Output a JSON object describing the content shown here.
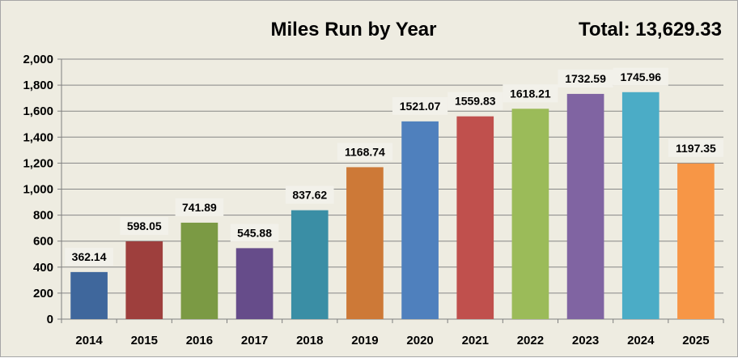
{
  "chart_data": {
    "type": "bar",
    "title": "Miles Run by Year",
    "total_label": "Total: 13,629.33",
    "categories": [
      "2014",
      "2015",
      "2016",
      "2017",
      "2018",
      "2019",
      "2020",
      "2021",
      "2022",
      "2023",
      "2024",
      "2025"
    ],
    "values": [
      362.14,
      598.05,
      741.89,
      545.88,
      837.62,
      1168.74,
      1521.07,
      1559.83,
      1618.21,
      1732.59,
      1745.96,
      1197.35
    ],
    "data_labels": [
      "362.14",
      "598.05",
      "741.89",
      "545.88",
      "837.62",
      "1168.74",
      "1521.07",
      "1559.83",
      "1618.21",
      "1732.59",
      "1745.96",
      "1197.35"
    ],
    "bar_colors": [
      "#3f679c",
      "#9e3f3d",
      "#7b9a44",
      "#664c8a",
      "#3a8ea5",
      "#cd7937",
      "#4f80bd",
      "#c0504d",
      "#9bbb59",
      "#8064a2",
      "#4bacc6",
      "#f79646"
    ],
    "ylim": [
      0,
      2000
    ],
    "yticks": [
      0,
      200,
      400,
      600,
      800,
      1000,
      1200,
      1400,
      1600,
      1800,
      2000
    ],
    "ytick_labels": [
      "0",
      "200",
      "400",
      "600",
      "800",
      "1,000",
      "1,200",
      "1,400",
      "1,600",
      "1,800",
      "2,000"
    ],
    "xlabel": "",
    "ylabel": "",
    "grid": true,
    "legend": "none"
  }
}
